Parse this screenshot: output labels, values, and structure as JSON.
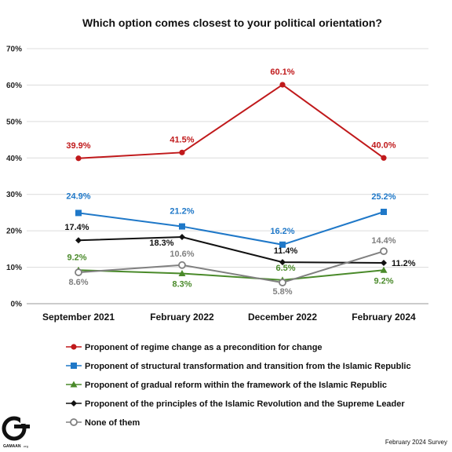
{
  "chart_data": {
    "type": "line",
    "title": "Which option comes closest to your political orientation?",
    "categories": [
      "September 2021",
      "February 2022",
      "December 2022",
      "February 2024"
    ],
    "y_ticks": [
      "0%",
      "10%",
      "20%",
      "30%",
      "40%",
      "50%",
      "60%",
      "70%"
    ],
    "ylim": [
      0,
      70
    ],
    "grid": true,
    "legend_position": "bottom-left",
    "series": [
      {
        "name": "Proponent of regime change as a precondition for change",
        "values": [
          39.9,
          41.5,
          60.1,
          40.0
        ],
        "labels": [
          "39.9%",
          "41.5%",
          "60.1%",
          "40.0%"
        ],
        "color": "#c0191b",
        "marker": "circle"
      },
      {
        "name": "Proponent of structural transformation and transition from the Islamic Republic",
        "values": [
          24.9,
          21.2,
          16.2,
          25.2
        ],
        "labels": [
          "24.9%",
          "21.2%",
          "16.2%",
          "25.2%"
        ],
        "color": "#1f78c8",
        "marker": "square"
      },
      {
        "name": "Proponent of gradual reform within the framework of the Islamic Republic",
        "values": [
          9.2,
          8.3,
          6.5,
          9.2
        ],
        "labels": [
          "9.2%",
          "8.3%",
          "6.5%",
          "9.2%"
        ],
        "color": "#4a8a2a",
        "marker": "triangle"
      },
      {
        "name": "Proponent of the principles of the Islamic Revolution and the Supreme Leader",
        "values": [
          17.4,
          18.3,
          11.4,
          11.2
        ],
        "labels": [
          "17.4%",
          "18.3%",
          "11.4%",
          "11.2%"
        ],
        "color": "#111111",
        "marker": "diamond"
      },
      {
        "name": "None of them",
        "values": [
          8.6,
          10.6,
          5.8,
          14.4
        ],
        "labels": [
          "8.6%",
          "10.6%",
          "5.8%",
          "14.4%"
        ],
        "color": "#808080",
        "marker": "open-circle"
      }
    ]
  },
  "footer": {
    "survey": "February 2024 Survey",
    "logo_text": "GAMAAN",
    "logo_suffix": ".org"
  }
}
